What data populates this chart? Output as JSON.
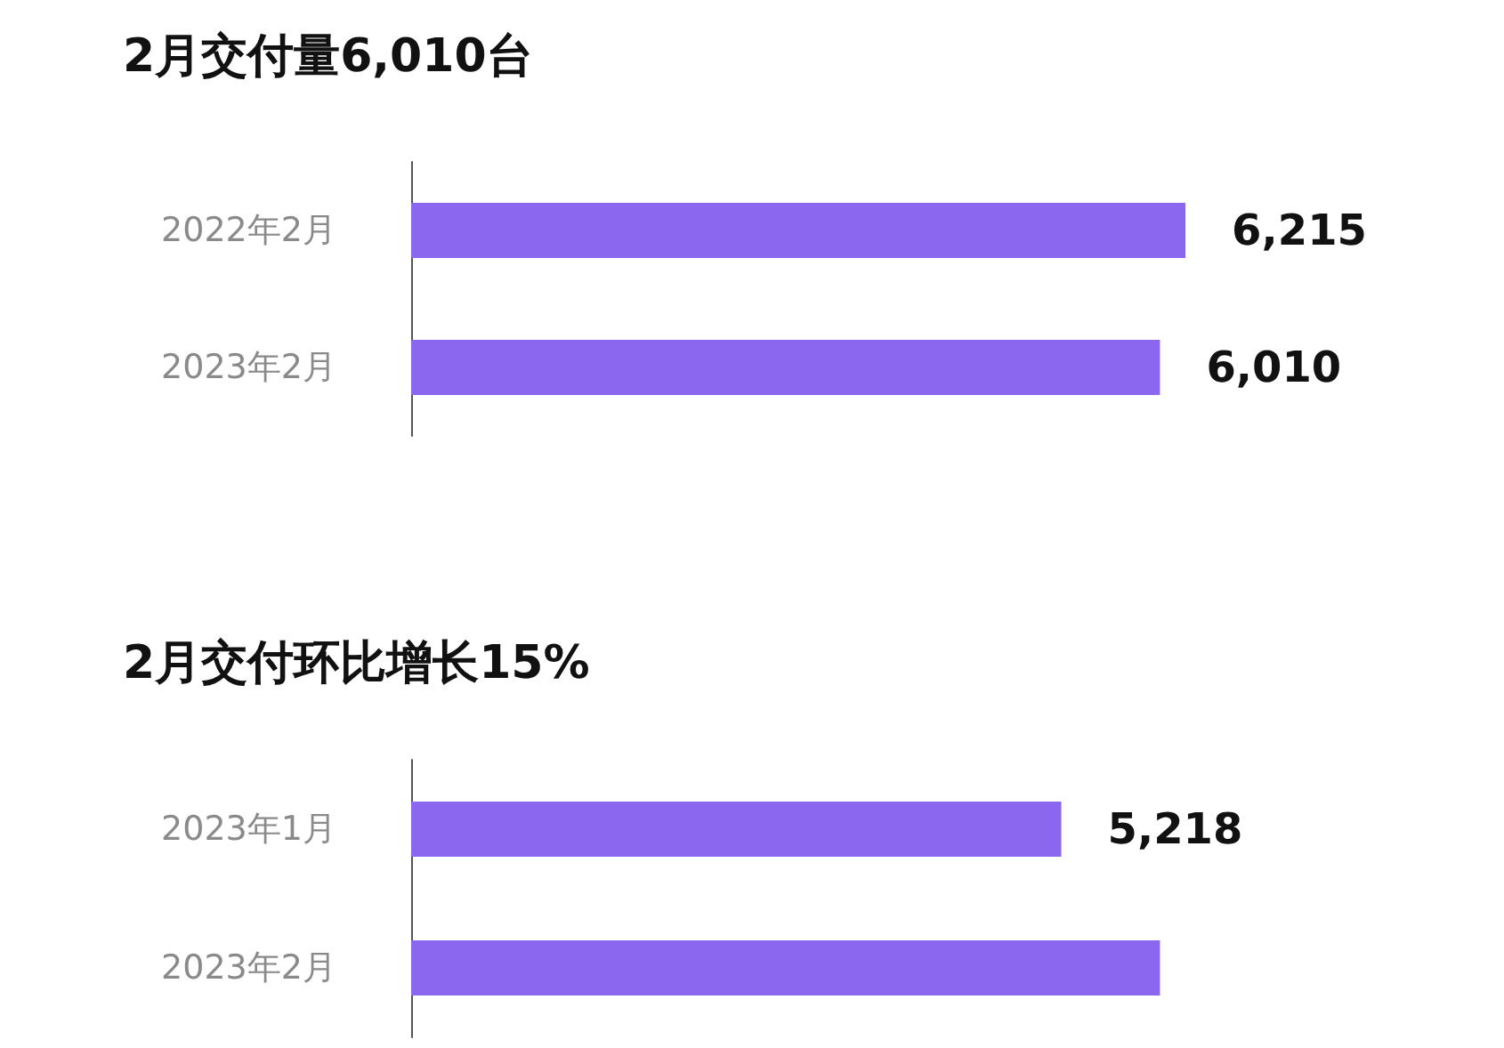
{
  "chart_data": [
    {
      "type": "bar",
      "orientation": "horizontal",
      "title": "2月交付量6,010台",
      "categories": [
        "2022年2月",
        "2023年2月"
      ],
      "series": [
        {
          "color": "#8b66ee",
          "values": [
            6215,
            6010
          ],
          "value_labels": [
            "6,215",
            "6,010"
          ]
        }
      ]
    },
    {
      "type": "bar",
      "orientation": "horizontal",
      "title": "2月交付环比增长15%",
      "categories": [
        "2023年1月",
        "2023年2月"
      ],
      "series": [
        {
          "color": "#8b66ee",
          "values": [
            5218,
            6010
          ],
          "value_labels": [
            "5,218",
            null
          ]
        }
      ]
    }
  ]
}
